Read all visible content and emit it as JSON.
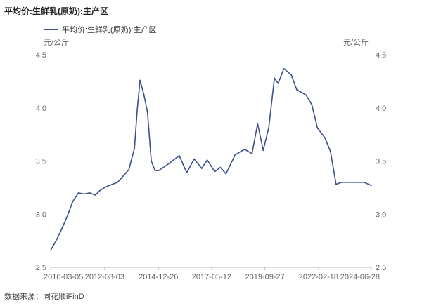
{
  "title": "平均价:生鲜乳(原奶):主产区",
  "source": "数据来源：同花顺iFinD",
  "colors": {
    "series": "#3d4f8c",
    "axis": "#bbbbbb",
    "text": "#666666"
  },
  "chart_data": {
    "type": "line",
    "legend_position": "top-left",
    "grid": false,
    "ylabel_left": "元/公斤",
    "ylabel_right": "元/公斤",
    "ylim": [
      2.5,
      4.5
    ],
    "yticks": [
      "2.5",
      "3.0",
      "3.5",
      "4.0",
      "4.5"
    ],
    "xlim": [
      "2010-03-05",
      "2024-06-28"
    ],
    "xticks": [
      "2010-03-05",
      "2012-08-03",
      "2014-12-26",
      "2017-05-12",
      "2019-09-27",
      "2022-02-18",
      "2024-06-28"
    ],
    "series": [
      {
        "name": "平均价:生鲜乳(原奶):主产区",
        "x": [
          "2010-03-05",
          "2010-06-01",
          "2010-09-01",
          "2010-12-01",
          "2011-03-01",
          "2011-06-01",
          "2011-09-01",
          "2011-12-01",
          "2012-03-01",
          "2012-06-01",
          "2012-09-01",
          "2012-12-01",
          "2013-03-01",
          "2013-06-01",
          "2013-09-01",
          "2013-12-01",
          "2014-01-15",
          "2014-03-01",
          "2014-05-01",
          "2014-07-01",
          "2014-09-01",
          "2014-11-01",
          "2015-01-01",
          "2015-06-01",
          "2015-12-01",
          "2016-04-01",
          "2016-08-01",
          "2016-12-01",
          "2017-03-01",
          "2017-07-01",
          "2017-10-01",
          "2018-01-01",
          "2018-06-01",
          "2018-11-01",
          "2019-03-01",
          "2019-06-01",
          "2019-09-01",
          "2019-12-01",
          "2020-03-01",
          "2020-05-01",
          "2020-08-01",
          "2020-12-01",
          "2021-03-01",
          "2021-06-01",
          "2021-08-01",
          "2021-11-01",
          "2022-02-01",
          "2022-06-01",
          "2022-09-01",
          "2022-12-01",
          "2023-03-01",
          "2023-06-01",
          "2023-09-01",
          "2023-12-01",
          "2024-03-01",
          "2024-06-28"
        ],
        "y": [
          2.66,
          2.75,
          2.86,
          2.98,
          3.12,
          3.2,
          3.19,
          3.2,
          3.18,
          3.23,
          3.26,
          3.28,
          3.3,
          3.36,
          3.42,
          3.62,
          3.98,
          4.26,
          4.13,
          3.96,
          3.5,
          3.41,
          3.41,
          3.47,
          3.55,
          3.39,
          3.52,
          3.43,
          3.51,
          3.4,
          3.44,
          3.38,
          3.56,
          3.61,
          3.57,
          3.85,
          3.6,
          3.82,
          4.28,
          4.23,
          4.37,
          4.31,
          4.17,
          4.14,
          4.12,
          4.03,
          3.81,
          3.72,
          3.59,
          3.28,
          3.3,
          3.3,
          3.3,
          3.3,
          3.3,
          3.27
        ]
      }
    ]
  }
}
